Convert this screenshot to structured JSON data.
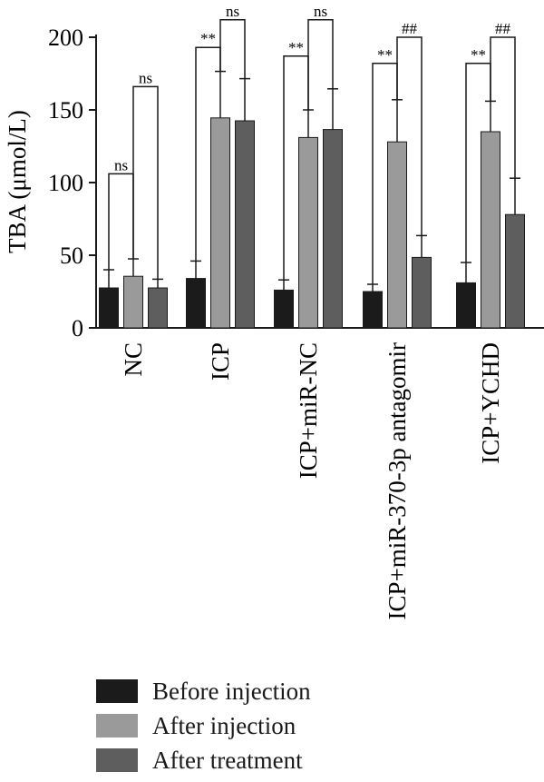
{
  "chart_data": {
    "type": "bar",
    "ylabel": "TBA (μmol/L)",
    "ylim": [
      0,
      200
    ],
    "yticks": [
      0,
      50,
      100,
      150,
      200
    ],
    "categories": [
      "NC",
      "ICP",
      "ICP+miR-NC",
      "ICP+miR-370-3p antagomir",
      "ICP+YCHD"
    ],
    "series": [
      {
        "name": "Before injection",
        "color": "#1b1b1b",
        "values": [
          27.5,
          34,
          26,
          25,
          31
        ],
        "errors": [
          12.5,
          12,
          7,
          5,
          14
        ]
      },
      {
        "name": "After injection",
        "color": "#9a9a9a",
        "values": [
          35.5,
          144.5,
          131,
          128,
          135
        ],
        "errors": [
          12,
          32,
          19,
          29,
          21
        ]
      },
      {
        "name": "After treatment",
        "color": "#5e5e5e",
        "values": [
          27.5,
          142.5,
          136.5,
          48.5,
          78
        ],
        "errors": [
          6,
          29,
          28,
          15,
          25
        ]
      }
    ],
    "annotations": [
      {
        "group": 0,
        "pair": [
          0,
          1
        ],
        "label": "ns",
        "y": 106
      },
      {
        "group": 0,
        "pair": [
          1,
          2
        ],
        "label": "ns",
        "y": 166
      },
      {
        "group": 1,
        "pair": [
          0,
          1
        ],
        "label": "**",
        "y": 193
      },
      {
        "group": 1,
        "pair": [
          1,
          2
        ],
        "label": "ns",
        "y": 212
      },
      {
        "group": 2,
        "pair": [
          0,
          1
        ],
        "label": "**",
        "y": 187
      },
      {
        "group": 2,
        "pair": [
          1,
          2
        ],
        "label": "ns",
        "y": 212
      },
      {
        "group": 3,
        "pair": [
          0,
          1
        ],
        "label": "**",
        "y": 182
      },
      {
        "group": 3,
        "pair": [
          1,
          2
        ],
        "label": "##",
        "y": 200
      },
      {
        "group": 4,
        "pair": [
          0,
          1
        ],
        "label": "**",
        "y": 182
      },
      {
        "group": 4,
        "pair": [
          1,
          2
        ],
        "label": "##",
        "y": 200
      }
    ]
  }
}
